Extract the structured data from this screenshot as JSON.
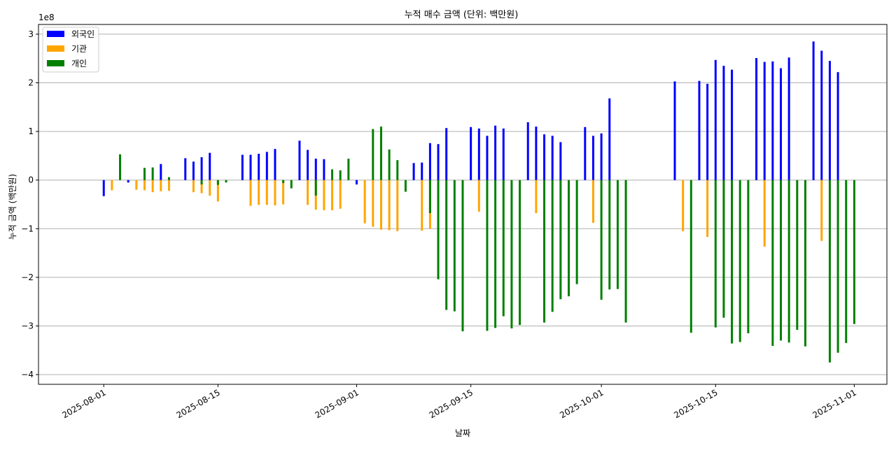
{
  "chart_data": {
    "type": "bar",
    "title": "누적 매수 금액 (단위: 백만원)",
    "xlabel": "날짜",
    "ylabel": "누적 금액 (백만원)",
    "y_offset_label": "1e8",
    "ylim": [
      -4.2,
      3.2
    ],
    "y_ticks": [
      -4,
      -3,
      -2,
      -1,
      0,
      1,
      2,
      3
    ],
    "y_tick_labels": [
      "−4",
      "−3",
      "−2",
      "−1",
      "0",
      "1",
      "2",
      "3"
    ],
    "x_tick_dates": [
      "2025-08-01",
      "2025-08-15",
      "2025-09-01",
      "2025-09-15",
      "2025-10-01",
      "2025-10-15",
      "2025-11-01"
    ],
    "x_tick_labels": [
      "2025-08-01",
      "2025-08-15",
      "2025-09-01",
      "2025-09-15",
      "2025-10-01",
      "2025-10-15",
      "2025-11-01"
    ],
    "grid": "horizontal",
    "legend_position": "upper-left",
    "colors": {
      "foreign": "#0000ff",
      "institution": "#ffa500",
      "individual": "#008000"
    },
    "series": [
      {
        "name": "외국인",
        "color": "#0000ff",
        "points": [
          [
            "2025-08-01",
            -0.33
          ],
          [
            "2025-08-04",
            -0.05
          ],
          [
            "2025-08-08",
            0.33
          ],
          [
            "2025-08-11",
            0.45
          ],
          [
            "2025-08-12",
            0.38
          ],
          [
            "2025-08-13",
            0.47
          ],
          [
            "2025-08-14",
            0.56
          ],
          [
            "2025-08-18",
            0.52
          ],
          [
            "2025-08-19",
            0.52
          ],
          [
            "2025-08-20",
            0.54
          ],
          [
            "2025-08-21",
            0.58
          ],
          [
            "2025-08-22",
            0.64
          ],
          [
            "2025-08-25",
            0.81
          ],
          [
            "2025-08-26",
            0.62
          ],
          [
            "2025-08-27",
            0.44
          ],
          [
            "2025-08-28",
            0.43
          ],
          [
            "2025-09-01",
            -0.09
          ],
          [
            "2025-09-08",
            0.35
          ],
          [
            "2025-09-09",
            0.36
          ],
          [
            "2025-09-10",
            0.76
          ],
          [
            "2025-09-11",
            0.74
          ],
          [
            "2025-09-12",
            1.07
          ],
          [
            "2025-09-15",
            1.09
          ],
          [
            "2025-09-16",
            1.06
          ],
          [
            "2025-09-17",
            0.91
          ],
          [
            "2025-09-18",
            1.12
          ],
          [
            "2025-09-19",
            1.06
          ],
          [
            "2025-09-22",
            1.19
          ],
          [
            "2025-09-23",
            1.1
          ],
          [
            "2025-09-24",
            0.94
          ],
          [
            "2025-09-25",
            0.91
          ],
          [
            "2025-09-26",
            0.78
          ],
          [
            "2025-09-29",
            1.09
          ],
          [
            "2025-09-30",
            0.91
          ],
          [
            "2025-10-01",
            0.96
          ],
          [
            "2025-10-02",
            1.68
          ],
          [
            "2025-10-10",
            2.03
          ],
          [
            "2025-10-13",
            2.04
          ],
          [
            "2025-10-14",
            1.98
          ],
          [
            "2025-10-15",
            2.47
          ],
          [
            "2025-10-16",
            2.35
          ],
          [
            "2025-10-17",
            2.27
          ],
          [
            "2025-10-20",
            2.51
          ],
          [
            "2025-10-21",
            2.43
          ],
          [
            "2025-10-22",
            2.44
          ],
          [
            "2025-10-23",
            2.3
          ],
          [
            "2025-10-24",
            2.52
          ],
          [
            "2025-10-27",
            2.85
          ],
          [
            "2025-10-28",
            2.66
          ],
          [
            "2025-10-29",
            2.45
          ],
          [
            "2025-10-30",
            2.22
          ]
        ]
      },
      {
        "name": "기관",
        "color": "#ffa500",
        "points": [
          [
            "2025-08-02",
            -0.21
          ],
          [
            "2025-08-05",
            -0.2
          ],
          [
            "2025-08-06",
            -0.21
          ],
          [
            "2025-08-07",
            -0.25
          ],
          [
            "2025-08-08",
            -0.23
          ],
          [
            "2025-08-09",
            -0.22
          ],
          [
            "2025-08-12",
            -0.25
          ],
          [
            "2025-08-13",
            -0.27
          ],
          [
            "2025-08-14",
            -0.32
          ],
          [
            "2025-08-15",
            -0.44
          ],
          [
            "2025-08-19",
            -0.53
          ],
          [
            "2025-08-20",
            -0.51
          ],
          [
            "2025-08-21",
            -0.51
          ],
          [
            "2025-08-22",
            -0.52
          ],
          [
            "2025-08-23",
            -0.5
          ],
          [
            "2025-08-26",
            -0.51
          ],
          [
            "2025-08-27",
            -0.61
          ],
          [
            "2025-08-28",
            -0.62
          ],
          [
            "2025-08-29",
            -0.62
          ],
          [
            "2025-08-30",
            -0.59
          ],
          [
            "2025-09-02",
            -0.89
          ],
          [
            "2025-09-03",
            -0.96
          ],
          [
            "2025-09-04",
            -1.02
          ],
          [
            "2025-09-05",
            -1.03
          ],
          [
            "2025-09-06",
            -1.05
          ],
          [
            "2025-09-09",
            -1.04
          ],
          [
            "2025-09-10",
            -1.0
          ],
          [
            "2025-09-16",
            -0.65
          ],
          [
            "2025-09-23",
            -0.68
          ],
          [
            "2025-09-30",
            -0.88
          ],
          [
            "2025-10-11",
            -1.05
          ],
          [
            "2025-10-14",
            -1.17
          ],
          [
            "2025-10-21",
            -1.37
          ],
          [
            "2025-10-28",
            -1.25
          ]
        ]
      },
      {
        "name": "개인",
        "color": "#008000",
        "points": [
          [
            "2025-08-03",
            0.53
          ],
          [
            "2025-08-06",
            0.25
          ],
          [
            "2025-08-07",
            0.26
          ],
          [
            "2025-08-09",
            0.06
          ],
          [
            "2025-08-13",
            -0.09
          ],
          [
            "2025-08-15",
            -0.1
          ],
          [
            "2025-08-16",
            -0.05
          ],
          [
            "2025-08-23",
            -0.06
          ],
          [
            "2025-08-24",
            -0.17
          ],
          [
            "2025-08-27",
            -0.32
          ],
          [
            "2025-08-29",
            0.22
          ],
          [
            "2025-08-30",
            0.2
          ],
          [
            "2025-08-31",
            0.44
          ],
          [
            "2025-09-03",
            1.05
          ],
          [
            "2025-09-04",
            1.1
          ],
          [
            "2025-09-05",
            0.63
          ],
          [
            "2025-09-06",
            0.41
          ],
          [
            "2025-09-07",
            -0.24
          ],
          [
            "2025-09-10",
            -0.68
          ],
          [
            "2025-09-11",
            -2.04
          ],
          [
            "2025-09-12",
            -2.67
          ],
          [
            "2025-09-13",
            -2.7
          ],
          [
            "2025-09-14",
            -3.11
          ],
          [
            "2025-09-17",
            -3.1
          ],
          [
            "2025-09-18",
            -3.04
          ],
          [
            "2025-09-19",
            -2.8
          ],
          [
            "2025-09-20",
            -3.05
          ],
          [
            "2025-09-21",
            -2.98
          ],
          [
            "2025-09-24",
            -2.93
          ],
          [
            "2025-09-25",
            -2.71
          ],
          [
            "2025-09-26",
            -2.45
          ],
          [
            "2025-09-27",
            -2.39
          ],
          [
            "2025-09-28",
            -2.14
          ],
          [
            "2025-10-01",
            -2.46
          ],
          [
            "2025-10-02",
            -2.25
          ],
          [
            "2025-10-03",
            -2.24
          ],
          [
            "2025-10-04",
            -2.93
          ],
          [
            "2025-10-12",
            -3.14
          ],
          [
            "2025-10-15",
            -3.03
          ],
          [
            "2025-10-16",
            -2.83
          ],
          [
            "2025-10-17",
            -3.36
          ],
          [
            "2025-10-18",
            -3.33
          ],
          [
            "2025-10-19",
            -3.15
          ],
          [
            "2025-10-22",
            -3.41
          ],
          [
            "2025-10-23",
            -3.3
          ],
          [
            "2025-10-24",
            -3.34
          ],
          [
            "2025-10-25",
            -3.08
          ],
          [
            "2025-10-26",
            -3.42
          ],
          [
            "2025-10-29",
            -3.75
          ],
          [
            "2025-10-30",
            -3.55
          ],
          [
            "2025-10-31",
            -3.35
          ],
          [
            "2025-11-01",
            -2.96
          ]
        ]
      }
    ]
  }
}
